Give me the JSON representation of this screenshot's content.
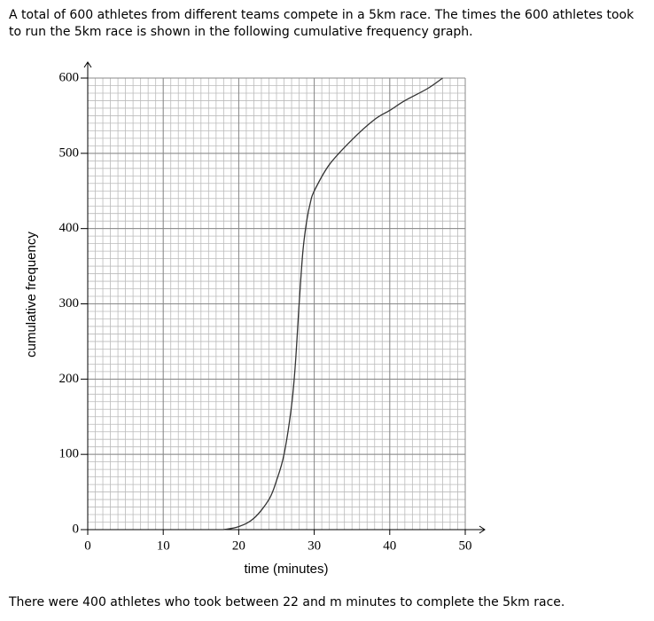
{
  "intro": "A total of 600 athletes from different teams compete in a 5km race. The times the 600 athletes took to run the 5km race is shown in the following cumulative frequency graph.",
  "chart_data": {
    "type": "line",
    "x_label": "time (minutes)",
    "y_label": "cumulative frequency",
    "x": [
      18,
      20,
      22,
      24,
      25,
      26,
      27,
      27.5,
      28,
      28.5,
      29,
      29.5,
      30,
      32,
      35,
      38,
      40,
      42,
      45,
      47
    ],
    "values": [
      0,
      4,
      15,
      40,
      65,
      100,
      165,
      220,
      300,
      370,
      410,
      435,
      450,
      485,
      518,
      545,
      557,
      570,
      586,
      600
    ],
    "color": "#333333",
    "xlim": [
      0,
      50
    ],
    "ylim": [
      0,
      600
    ],
    "xticks": [
      0,
      10,
      20,
      30,
      40,
      50
    ],
    "yticks": [
      0,
      100,
      200,
      300,
      400,
      500,
      600
    ],
    "grid": true,
    "xminor": 1,
    "yminor": 10
  },
  "question": "There were 400 athletes who took between 22 and m minutes to complete the 5km race."
}
